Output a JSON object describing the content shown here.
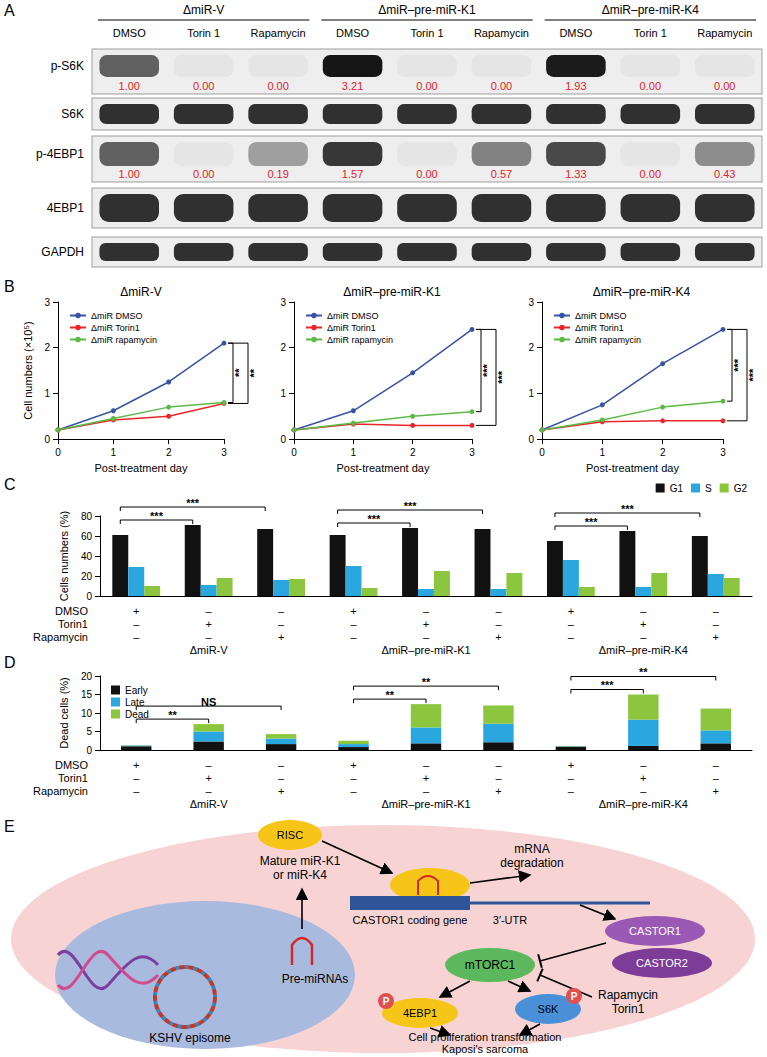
{
  "panel_labels": [
    "A",
    "B",
    "C",
    "D",
    "E"
  ],
  "blot": {
    "groups": [
      "ΔmiR-V",
      "ΔmiR–pre-miR-K1",
      "ΔmiR–pre-miR-K4"
    ],
    "lanes": [
      "DMSO",
      "Torin 1",
      "Rapamycin"
    ],
    "rows": [
      {
        "label": "p-S6K",
        "quantification": [
          "1.00",
          "0.00",
          "0.00",
          "3.21",
          "0.00",
          "0.00",
          "1.93",
          "0.00",
          "0.00"
        ]
      },
      {
        "label": "S6K"
      },
      {
        "label": "p-4EBP1",
        "quantification": [
          "1.00",
          "0.00",
          "0.19",
          "1.57",
          "0.00",
          "0.57",
          "1.33",
          "0.00",
          "0.43"
        ]
      },
      {
        "label": "4EBP1"
      },
      {
        "label": "GAPDH"
      }
    ]
  },
  "chart_data": [
    {
      "type": "line",
      "title": "ΔmiR-V",
      "x_label": "Post-treatment day",
      "y_label": "Cell numbers (×10⁵)",
      "x": [
        0,
        1,
        2,
        3
      ],
      "xlim": [
        0,
        3
      ],
      "xticks": [
        0,
        1,
        2,
        3
      ],
      "ylim": [
        0,
        3
      ],
      "yticks": [
        0,
        1,
        2,
        3
      ],
      "grid": false,
      "legend": "upper left",
      "marker": "circle",
      "line_style": "solid",
      "series": [
        {
          "name": "ΔmiR DMSO",
          "color": "#3953a4",
          "values": [
            0.2,
            0.62,
            1.25,
            2.1
          ]
        },
        {
          "name": "ΔmiR Torin1",
          "color": "#e8262b",
          "values": [
            0.2,
            0.42,
            0.5,
            0.78
          ]
        },
        {
          "name": "ΔmiR rapamycin",
          "color": "#5cb947",
          "values": [
            0.2,
            0.45,
            0.7,
            0.8
          ]
        }
      ],
      "significance": [
        {
          "from": "ΔmiR DMSO",
          "to": "ΔmiR rapamycin",
          "label": "**"
        },
        {
          "from": "ΔmiR DMSO",
          "to": "ΔmiR Torin1",
          "label": "**"
        }
      ]
    },
    {
      "type": "line",
      "title": "ΔmiR–pre-miR-K1",
      "x_label": "Post-treatment day",
      "x": [
        0,
        1,
        2,
        3
      ],
      "xlim": [
        0,
        3
      ],
      "xticks": [
        0,
        1,
        2,
        3
      ],
      "ylim": [
        0,
        3
      ],
      "yticks": [
        0,
        1,
        2,
        3
      ],
      "grid": false,
      "legend": "upper left",
      "marker": "circle",
      "line_style": "solid",
      "series": [
        {
          "name": "ΔmiR DMSO",
          "color": "#3953a4",
          "values": [
            0.2,
            0.62,
            1.45,
            2.4
          ]
        },
        {
          "name": "ΔmiR Torin1",
          "color": "#e8262b",
          "values": [
            0.2,
            0.33,
            0.3,
            0.3
          ]
        },
        {
          "name": "ΔmiR rapamycin",
          "color": "#5cb947",
          "values": [
            0.2,
            0.35,
            0.5,
            0.6
          ]
        }
      ],
      "significance": [
        {
          "from": "ΔmiR DMSO",
          "to": "ΔmiR rapamycin",
          "label": "***"
        },
        {
          "from": "ΔmiR DMSO",
          "to": "ΔmiR Torin1",
          "label": "***"
        }
      ]
    },
    {
      "type": "line",
      "title": "ΔmiR–pre-miR-K4",
      "x_label": "Post-treatment day",
      "x": [
        0,
        1,
        2,
        3
      ],
      "xlim": [
        0,
        3
      ],
      "xticks": [
        0,
        1,
        2,
        3
      ],
      "ylim": [
        0,
        3
      ],
      "yticks": [
        0,
        1,
        2,
        3
      ],
      "grid": false,
      "legend": "upper left",
      "marker": "circle",
      "line_style": "solid",
      "series": [
        {
          "name": "ΔmiR DMSO",
          "color": "#3953a4",
          "values": [
            0.2,
            0.75,
            1.65,
            2.4
          ]
        },
        {
          "name": "ΔmiR Torin1",
          "color": "#e8262b",
          "values": [
            0.2,
            0.38,
            0.4,
            0.4
          ]
        },
        {
          "name": "ΔmiR rapamycin",
          "color": "#5cb947",
          "values": [
            0.2,
            0.42,
            0.7,
            0.83
          ]
        }
      ],
      "significance": [
        {
          "from": "ΔmiR DMSO",
          "to": "ΔmiR rapamycin",
          "label": "***"
        },
        {
          "from": "ΔmiR DMSO",
          "to": "ΔmiR Torin1",
          "label": "***"
        }
      ]
    },
    {
      "type": "bar",
      "y_label": "Cells numbers (%)",
      "categories": [
        null,
        null,
        null,
        null,
        null,
        null,
        null,
        null,
        null
      ],
      "ylim": [
        0,
        80
      ],
      "yticks": [
        0,
        20,
        40,
        60,
        80
      ],
      "grid": false,
      "legend": "upper right",
      "series": [
        {
          "name": "G1",
          "color": "#111111",
          "values": [
            61,
            71,
            67,
            61,
            68,
            67,
            55,
            65,
            60
          ]
        },
        {
          "name": "S",
          "color": "#2aa7df",
          "values": [
            29,
            11,
            16,
            30,
            7,
            7,
            36,
            9,
            22
          ]
        },
        {
          "name": "G2",
          "color": "#8cc63f",
          "values": [
            10,
            18,
            17,
            8,
            25,
            23,
            9,
            23,
            18
          ]
        }
      ],
      "treatment_rows": [
        {
          "label": "DMSO",
          "marks": [
            "+",
            "–",
            "–",
            "+",
            "–",
            "–",
            "+",
            "–",
            "–"
          ]
        },
        {
          "label": "Torin1",
          "marks": [
            "–",
            "+",
            "–",
            "–",
            "+",
            "–",
            "–",
            "+",
            "–"
          ]
        },
        {
          "label": "Rapamycin",
          "marks": [
            "–",
            "–",
            "+",
            "–",
            "–",
            "+",
            "–",
            "–",
            "+"
          ]
        }
      ],
      "groups": [
        "ΔmiR-V",
        "ΔmiR–pre-miR-K1",
        "ΔmiR–pre-miR-K4"
      ],
      "significance": [
        {
          "series": "G1",
          "from": 0,
          "to": 1,
          "label": "***"
        },
        {
          "series": "G1",
          "from": 0,
          "to": 2,
          "label": "***"
        },
        {
          "series": "G1",
          "from": 3,
          "to": 4,
          "label": "***"
        },
        {
          "series": "G1",
          "from": 3,
          "to": 5,
          "label": "***"
        },
        {
          "series": "G1",
          "from": 6,
          "to": 7,
          "label": "***"
        },
        {
          "series": "G1",
          "from": 6,
          "to": 8,
          "label": "***"
        }
      ]
    },
    {
      "type": "bar",
      "y_label": "Dead cells (%)",
      "categories": [
        null,
        null,
        null,
        null,
        null,
        null,
        null,
        null,
        null
      ],
      "ylim": [
        0,
        20
      ],
      "yticks": [
        0,
        5,
        10,
        15,
        20
      ],
      "grid": false,
      "legend": "upper left",
      "stacked": true,
      "series": [
        {
          "name": "Early",
          "color": "#111111",
          "values": [
            1.0,
            2.3,
            1.6,
            0.8,
            1.8,
            2.1,
            0.9,
            1.1,
            1.8
          ]
        },
        {
          "name": "Late",
          "color": "#2aa7df",
          "values": [
            0.2,
            2.7,
            1.5,
            0.8,
            4.3,
            5.0,
            0.1,
            7.1,
            3.5
          ]
        },
        {
          "name": "Dead",
          "color": "#8cc63f",
          "values": [
            0.1,
            2.0,
            1.2,
            0.9,
            6.3,
            4.9,
            0.1,
            6.8,
            5.9
          ]
        }
      ],
      "treatment_rows": [
        {
          "label": "DMSO",
          "marks": [
            "+",
            "–",
            "–",
            "+",
            "–",
            "–",
            "+",
            "–",
            "–"
          ]
        },
        {
          "label": "Torin1",
          "marks": [
            "–",
            "+",
            "–",
            "–",
            "+",
            "–",
            "–",
            "+",
            "–"
          ]
        },
        {
          "label": "Rapamycin",
          "marks": [
            "–",
            "–",
            "+",
            "–",
            "–",
            "+",
            "–",
            "–",
            "+"
          ]
        }
      ],
      "groups": [
        "ΔmiR-V",
        "ΔmiR–pre-miR-K1",
        "ΔmiR–pre-miR-K4"
      ],
      "significance": [
        {
          "from": 0,
          "to": 1,
          "label": "**"
        },
        {
          "from": 0,
          "to": 2,
          "label": "NS"
        },
        {
          "from": 3,
          "to": 4,
          "label": "**"
        },
        {
          "from": 3,
          "to": 5,
          "label": "**"
        },
        {
          "from": 6,
          "to": 7,
          "label": "***"
        },
        {
          "from": 6,
          "to": 8,
          "label": "**"
        }
      ]
    }
  ],
  "diagram": {
    "risc": "RISC",
    "mature_mirna": [
      "Mature miR-K1",
      "or miR-K4"
    ],
    "mrna_degradation": [
      "mRNA",
      "degradation"
    ],
    "gene": "CASTOR1 coding gene",
    "utr": "3′-UTR",
    "castor1": "CASTOR1",
    "castor2": "CASTOR2",
    "mtorc1": "mTORC1",
    "inhibitors": [
      "Rapamycin",
      "Torin1"
    ],
    "pre_mirnas": "Pre-miRNAs",
    "episome": "KSHV episome",
    "eif": "4EBP1",
    "s6k": "S6K",
    "phospho": "P",
    "outcome": [
      "Cell proliferation transformation",
      "Kaposi's sarcoma"
    ]
  }
}
